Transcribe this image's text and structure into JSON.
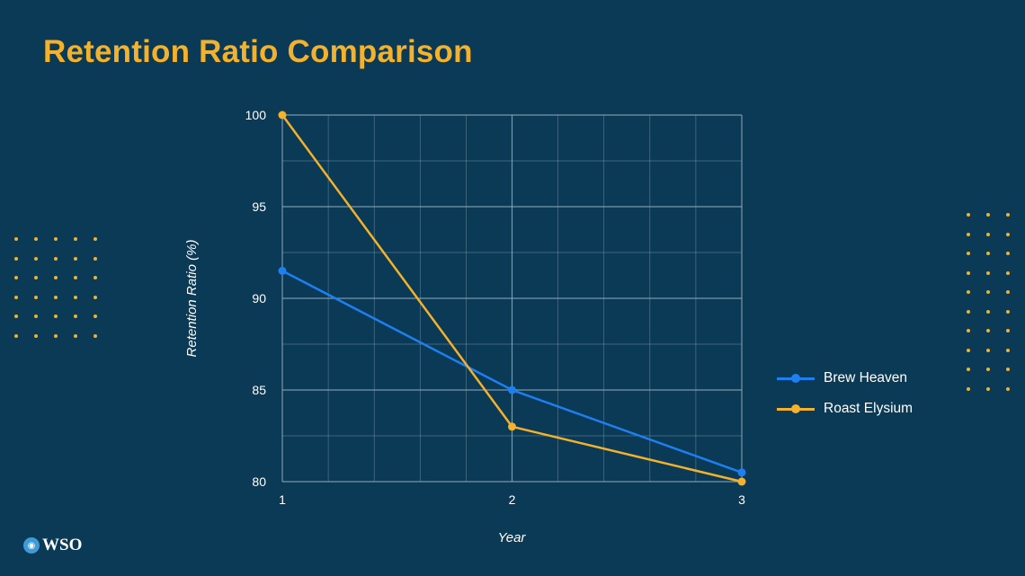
{
  "title": "Retention Ratio Comparison",
  "brand": {
    "logo_text": "WSO"
  },
  "colors": {
    "background": "#0b3a56",
    "accent": "#f3b12c",
    "grid": "#8fa6b8"
  },
  "chart_data": {
    "type": "line",
    "x": [
      1,
      2,
      3
    ],
    "x_ticks": [
      "1",
      "2",
      "3"
    ],
    "y_ticks": [
      "80",
      "85",
      "90",
      "95",
      "100"
    ],
    "ylim": [
      80,
      100
    ],
    "xlim": [
      1,
      3
    ],
    "xlabel": "Year",
    "ylabel": "Retention Ratio (%)",
    "grid": true,
    "legend_position": "right",
    "series": [
      {
        "name": "Brew Heaven",
        "color": "#1e7ff0",
        "values": [
          91.5,
          85.0,
          80.5
        ]
      },
      {
        "name": "Roast Elysium",
        "color": "#f3b12c",
        "values": [
          100.0,
          83.0,
          80.0
        ]
      }
    ]
  }
}
